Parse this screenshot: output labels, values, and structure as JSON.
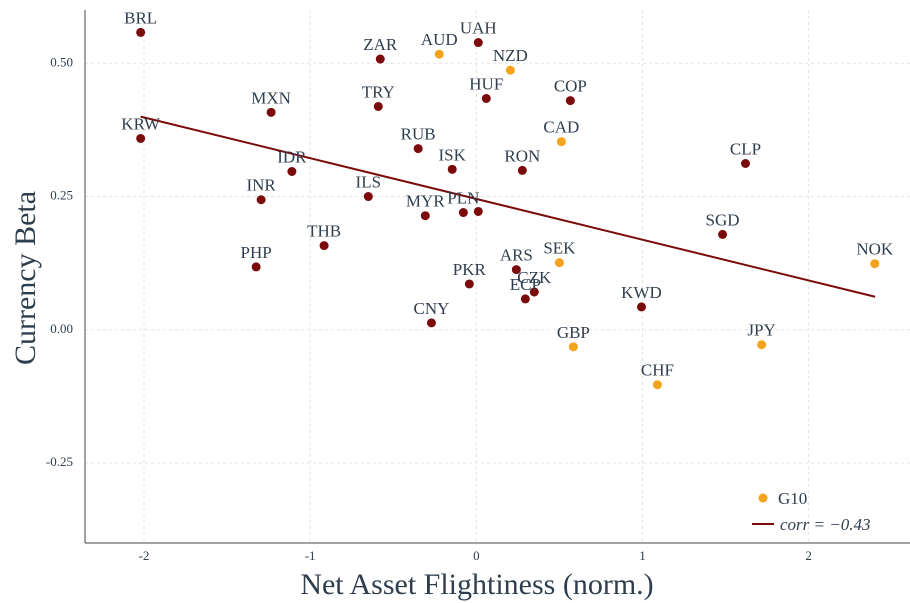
{
  "chart_data": {
    "type": "scatter",
    "xlabel": "Net Asset Flightiness (norm.)",
    "ylabel": "Currency Beta",
    "xlim": [
      -2.355,
      2.61
    ],
    "ylim": [
      -0.4,
      0.6
    ],
    "xticks": [
      -2,
      -1,
      0,
      1,
      2
    ],
    "yticks": [
      {
        "value": -0.25,
        "label": "-0.25"
      },
      {
        "value": 0,
        "label": "0.00"
      },
      0.25,
      {
        "value": 0.5,
        "label": "0.50"
      }
    ],
    "grid": true,
    "legend": "lower right",
    "series": [
      {
        "color": "#7b0a0a",
        "labels": [
          "BRL",
          "KRW",
          "MXN",
          "IDR",
          "INR",
          "PHP",
          "THB",
          "ILS",
          "TRY",
          "ZAR",
          "RUB",
          "MYR",
          "ISK",
          "PLN",
          "CNY",
          "PKR",
          "UAH",
          "HUF",
          "COP",
          "RON",
          "ARS",
          "CZK",
          "ECP",
          "KWD",
          "SGD",
          "CLP"
        ],
        "x": [
          -2.02,
          -2.02,
          -1.235,
          -1.11,
          -1.295,
          -1.325,
          -0.916,
          -0.65,
          -0.59,
          -0.578,
          -0.35,
          -0.307,
          -0.145,
          -0.078,
          -0.27,
          -0.042,
          0.012,
          0.06,
          0.566,
          0.277,
          0.241,
          0.349,
          0.295,
          0.994,
          1.482,
          1.62
        ],
        "values": [
          0.558,
          0.359,
          0.408,
          0.297,
          0.244,
          0.118,
          0.158,
          0.25,
          0.419,
          0.508,
          0.34,
          0.214,
          0.301,
          0.22,
          0.013,
          0.086,
          0.539,
          0.434,
          0.43,
          0.299,
          0.113,
          0.071,
          0.058,
          0.043,
          0.179,
          0.312
        ]
      },
      {
        "name": "G10",
        "color": "#f5a21c",
        "labels": [
          "AUD",
          "NZD",
          "CAD",
          "SEK",
          "GBP",
          "CHF",
          "JPY",
          "NOK"
        ],
        "x": [
          -0.223,
          0.205,
          0.512,
          0.5,
          0.584,
          1.09,
          1.717,
          2.398
        ],
        "values": [
          0.517,
          0.487,
          0.353,
          0.126,
          -0.032,
          -0.103,
          -0.028,
          0.124
        ]
      }
    ],
    "extra_point": {
      "x": 0.012,
      "value": 0.222
    },
    "fit": {
      "name": "corr = −0.43",
      "color": "#7b0a0a",
      "x": [
        -2.02,
        2.4
      ],
      "values": [
        0.4,
        0.062
      ]
    }
  }
}
